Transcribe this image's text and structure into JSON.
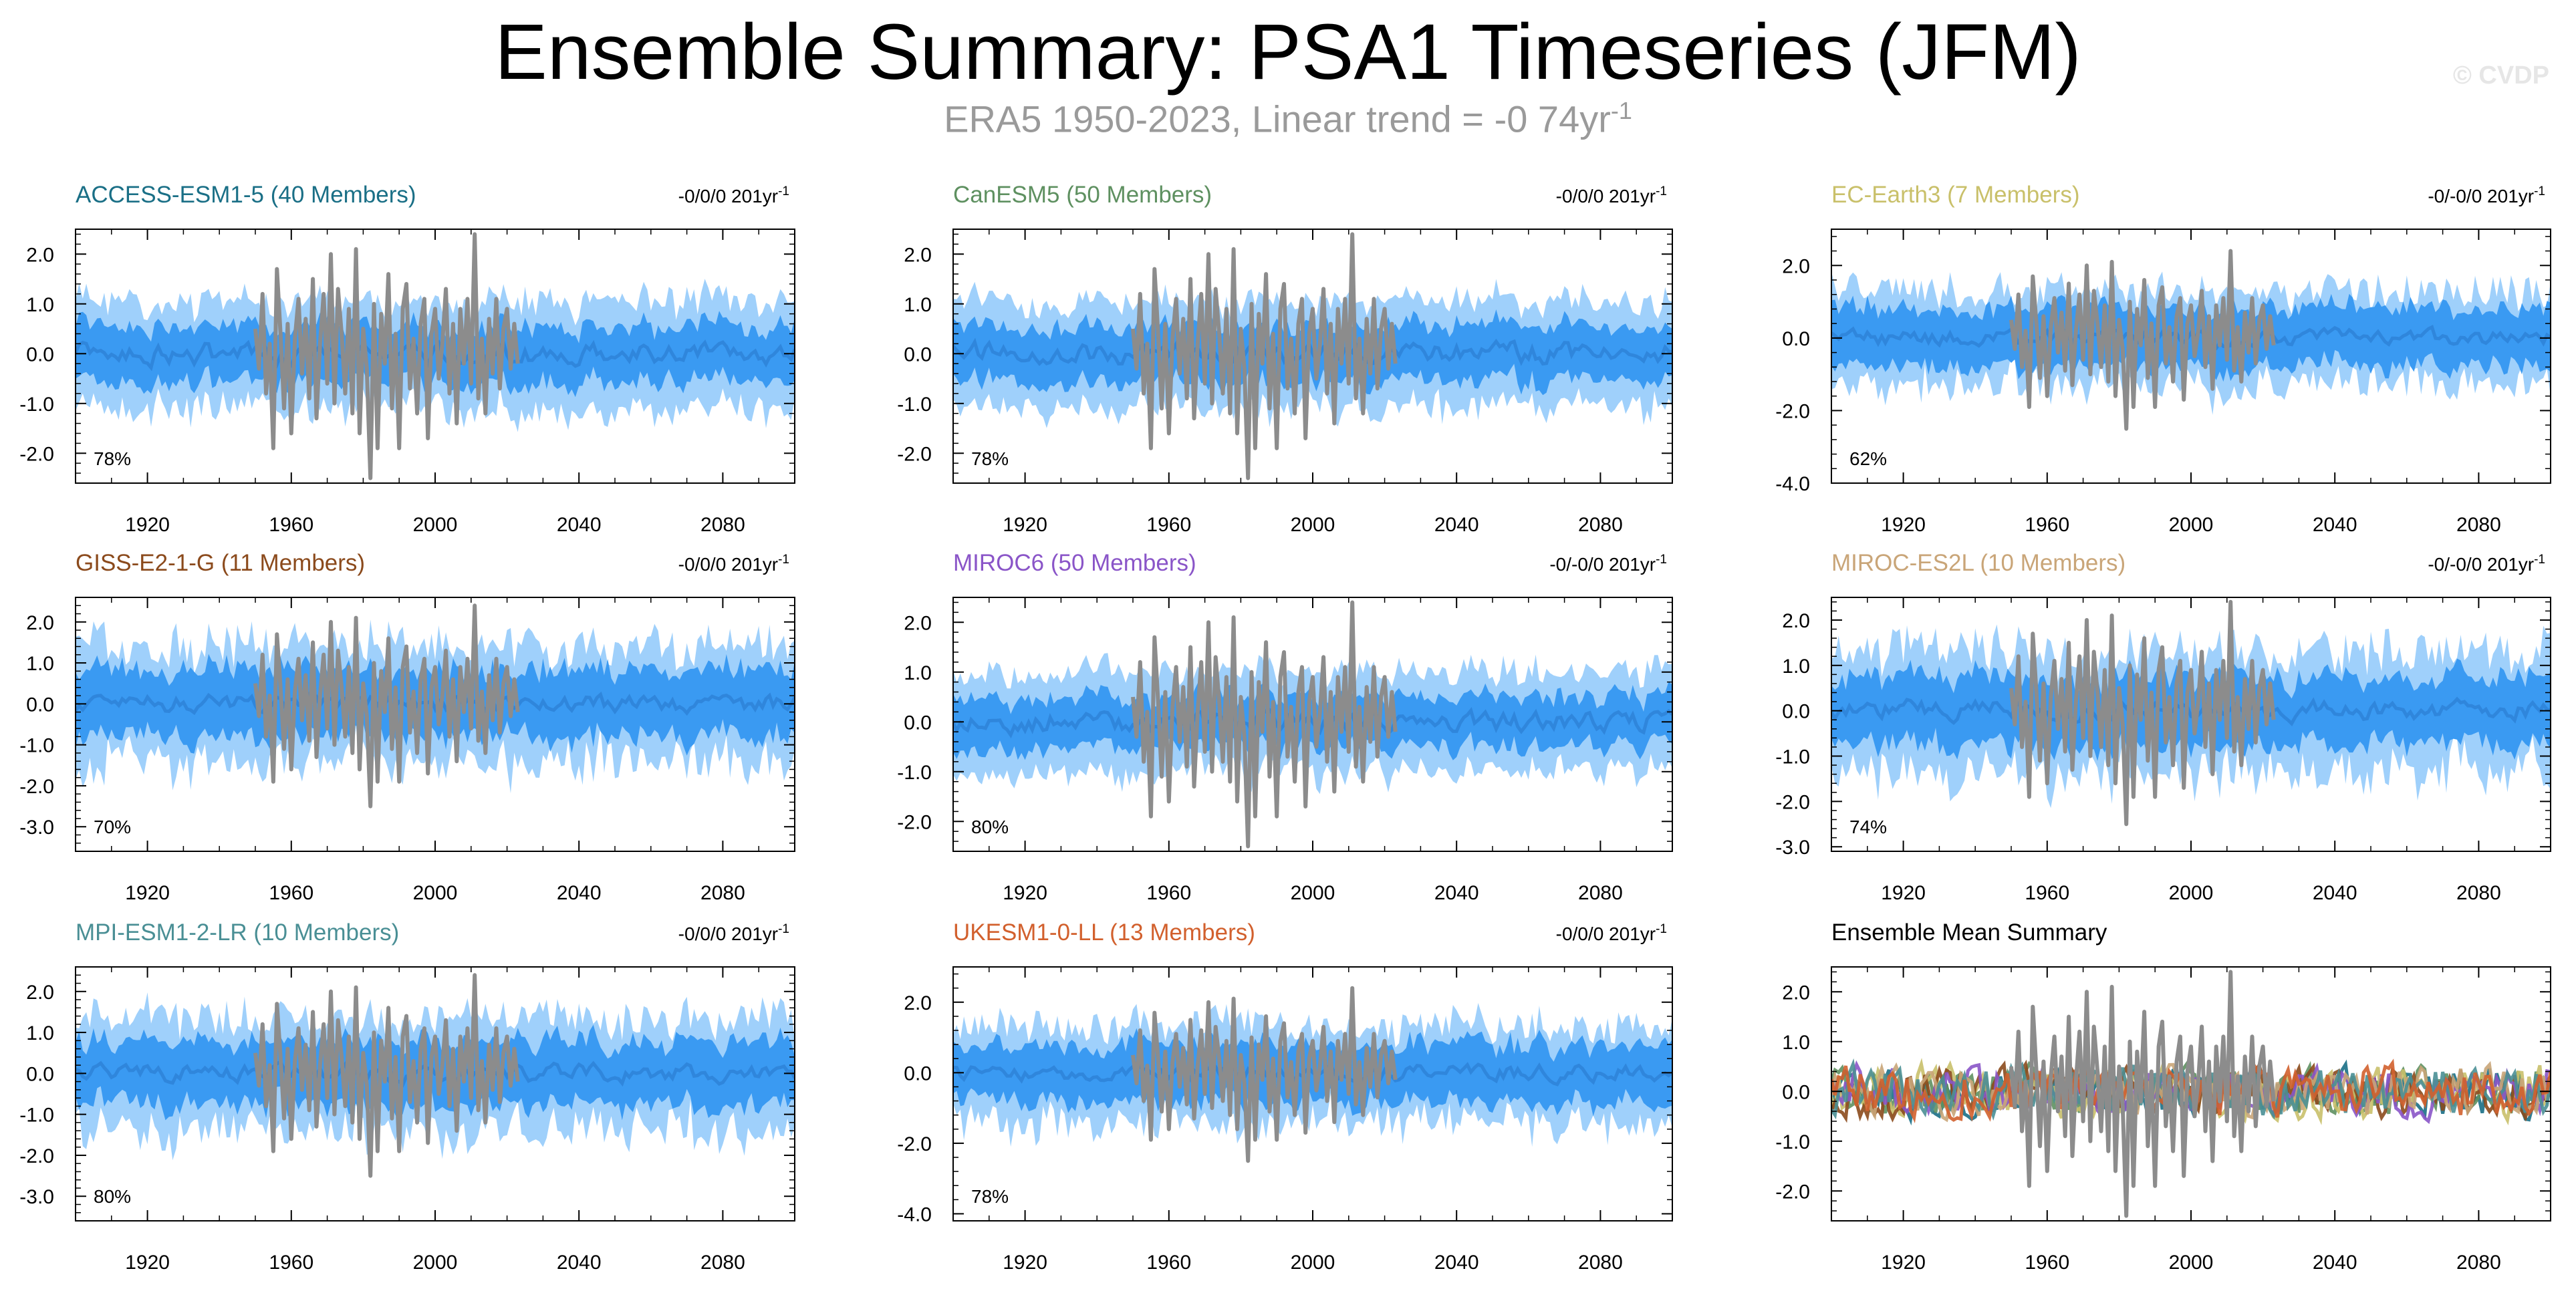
{
  "title": "Ensemble Summary: PSA1 Timeseries (JFM)",
  "subtitle": {
    "text": "ERA5 1950-2023, Linear trend = -0 74yr",
    "superscript": "-1"
  },
  "watermark": "© CVDP",
  "colors": {
    "outer_band": "#9fd0fb",
    "inner_band": "#3a9af2",
    "ensemble_mean": "#2f86dc",
    "observations": "#8c8c8c"
  },
  "chart_data": [
    {
      "type": "area",
      "title": "ACCESS-ESM1-5 (40 Members)",
      "title_color": "#1a6f86",
      "trend": "-0/0/0 201yr",
      "trend_unit_sup": "-1",
      "percent": "78%",
      "xlim": [
        1900,
        2100
      ],
      "xticks": [
        1920,
        1960,
        2000,
        2040,
        2080
      ],
      "ylim": [
        -2.6,
        2.5
      ],
      "yticks": [
        2.0,
        1.0,
        0.0,
        -1.0,
        -2.0
      ],
      "yticklabels": [
        "2.0",
        "1.0",
        "0.0",
        "-1.0",
        "-2.0"
      ],
      "band_outer": 1.05,
      "band_inner": 0.55,
      "band_var": 0.25,
      "seed": 11
    },
    {
      "type": "area",
      "title": "CanESM5 (50 Members)",
      "title_color": "#5e9060",
      "trend": "-0/0/0 201yr",
      "trend_unit_sup": "-1",
      "percent": "78%",
      "xlim": [
        1900,
        2100
      ],
      "xticks": [
        1920,
        1960,
        2000,
        2040,
        2080
      ],
      "ylim": [
        -2.6,
        2.5
      ],
      "yticks": [
        2.0,
        1.0,
        0.0,
        -1.0,
        -2.0
      ],
      "yticklabels": [
        "2.0",
        "1.0",
        "0.0",
        "-1.0",
        "-2.0"
      ],
      "band_outer": 1.05,
      "band_inner": 0.55,
      "band_var": 0.22,
      "seed": 23
    },
    {
      "type": "area",
      "title": "EC-Earth3 (7 Members)",
      "title_color": "#c9c06a",
      "trend": "-0/-0/0 201yr",
      "trend_unit_sup": "-1",
      "percent": "62%",
      "xlim": [
        1900,
        2100
      ],
      "xticks": [
        1920,
        1960,
        2000,
        2040,
        2080
      ],
      "ylim": [
        -4.0,
        3.0
      ],
      "yticks": [
        2.0,
        0.0,
        -2.0,
        -4.0
      ],
      "yticklabels": [
        "2.0",
        "0.0",
        "-2.0",
        "-4.0"
      ],
      "band_outer": 1.25,
      "band_inner": 0.8,
      "band_var": 0.45,
      "seed": 37
    },
    {
      "type": "area",
      "title": "GISS-E2-1-G (11 Members)",
      "title_color": "#8b4a1c",
      "trend": "-0/0/0 201yr",
      "trend_unit_sup": "-1",
      "percent": "70%",
      "xlim": [
        1900,
        2100
      ],
      "xticks": [
        1920,
        1960,
        2000,
        2040,
        2080
      ],
      "ylim": [
        -3.6,
        2.6
      ],
      "yticks": [
        2.0,
        1.0,
        0.0,
        -1.0,
        -2.0,
        -3.0
      ],
      "yticklabels": [
        "2.0",
        "1.0",
        "0.0",
        "-1.0",
        "-2.0",
        "-3.0"
      ],
      "band_outer": 1.4,
      "band_inner": 0.8,
      "band_var": 0.5,
      "seed": 41
    },
    {
      "type": "area",
      "title": "MIROC6 (50 Members)",
      "title_color": "#8a55c8",
      "trend": "-0/-0/0 201yr",
      "trend_unit_sup": "-1",
      "percent": "80%",
      "xlim": [
        1900,
        2100
      ],
      "xticks": [
        1920,
        1960,
        2000,
        2040,
        2080
      ],
      "ylim": [
        -2.6,
        2.5
      ],
      "yticks": [
        2.0,
        1.0,
        0.0,
        -1.0,
        -2.0
      ],
      "yticklabels": [
        "2.0",
        "1.0",
        "0.0",
        "-1.0",
        "-2.0"
      ],
      "band_outer": 1.0,
      "band_inner": 0.5,
      "band_var": 0.2,
      "seed": 53
    },
    {
      "type": "area",
      "title": "MIROC-ES2L (10 Members)",
      "title_color": "#c9a578",
      "trend": "-0/-0/0 201yr",
      "trend_unit_sup": "-1",
      "percent": "74%",
      "xlim": [
        1900,
        2100
      ],
      "xticks": [
        1920,
        1960,
        2000,
        2040,
        2080
      ],
      "ylim": [
        -3.1,
        2.5
      ],
      "yticks": [
        2.0,
        1.0,
        0.0,
        -1.0,
        -2.0,
        -3.0
      ],
      "yticklabels": [
        "2.0",
        "1.0",
        "0.0",
        "-1.0",
        "-2.0",
        "-3.0"
      ],
      "band_outer": 1.3,
      "band_inner": 0.75,
      "band_var": 0.45,
      "seed": 67
    },
    {
      "type": "area",
      "title": "MPI-ESM1-2-LR (10 Members)",
      "title_color": "#4a8f95",
      "trend": "-0/0/0 201yr",
      "trend_unit_sup": "-1",
      "percent": "80%",
      "xlim": [
        1900,
        2100
      ],
      "xticks": [
        1920,
        1960,
        2000,
        2040,
        2080
      ],
      "ylim": [
        -3.6,
        2.6
      ],
      "yticks": [
        2.0,
        1.0,
        0.0,
        -1.0,
        -2.0,
        -3.0
      ],
      "yticklabels": [
        "2.0",
        "1.0",
        "0.0",
        "-1.0",
        "-2.0",
        "-3.0"
      ],
      "band_outer": 1.35,
      "band_inner": 0.75,
      "band_var": 0.45,
      "seed": 79
    },
    {
      "type": "area",
      "title": "UKESM1-0-LL (13 Members)",
      "title_color": "#d2602d",
      "trend": "-0/0/0 201yr",
      "trend_unit_sup": "-1",
      "percent": "78%",
      "xlim": [
        1900,
        2100
      ],
      "xticks": [
        1920,
        1960,
        2000,
        2040,
        2080
      ],
      "ylim": [
        -4.2,
        3.0
      ],
      "yticks": [
        2.0,
        0.0,
        -2.0,
        -4.0
      ],
      "yticklabels": [
        "2.0",
        "0.0",
        "-2.0",
        "-4.0"
      ],
      "band_outer": 1.35,
      "band_inner": 0.8,
      "band_var": 0.45,
      "seed": 83
    },
    {
      "type": "line",
      "title": "Ensemble Mean Summary",
      "title_color": "#000000",
      "xlim": [
        1900,
        2100
      ],
      "xticks": [
        1920,
        1960,
        2000,
        2040,
        2080
      ],
      "ylim": [
        -2.6,
        2.5
      ],
      "yticks": [
        2.0,
        1.0,
        0.0,
        -1.0,
        -2.0
      ],
      "yticklabels": [
        "2.0",
        "1.0",
        "0.0",
        "-1.0",
        "-2.0"
      ],
      "series_colors": [
        "#1a6f86",
        "#5e9060",
        "#c9c06a",
        "#8b4a1c",
        "#8a55c8",
        "#c9a578",
        "#4a8f95",
        "#d2602d"
      ]
    }
  ],
  "observations": {
    "x": [
      1950,
      1951,
      1952,
      1953,
      1954,
      1955,
      1956,
      1957,
      1958,
      1959,
      1960,
      1961,
      1962,
      1963,
      1964,
      1965,
      1966,
      1967,
      1968,
      1969,
      1970,
      1971,
      1972,
      1973,
      1974,
      1975,
      1976,
      1977,
      1978,
      1979,
      1980,
      1981,
      1982,
      1983,
      1984,
      1985,
      1986,
      1987,
      1988,
      1989,
      1990,
      1991,
      1992,
      1993,
      1994,
      1995,
      1996,
      1997,
      1998,
      1999,
      2000,
      2001,
      2002,
      2003,
      2004,
      2005,
      2006,
      2007,
      2008,
      2009,
      2010,
      2011,
      2012,
      2013,
      2014,
      2015,
      2016,
      2017,
      2018,
      2019,
      2020,
      2021,
      2022,
      2023
    ],
    "y": [
      0.5,
      -0.3,
      1.2,
      -0.8,
      0.2,
      -1.9,
      1.7,
      0.4,
      -1.1,
      0.6,
      -1.6,
      0.3,
      1.1,
      -0.4,
      0.7,
      -0.9,
      1.5,
      -1.3,
      0.2,
      1.2,
      -0.6,
      2.0,
      -1.0,
      1.3,
      0.4,
      -0.8,
      0.9,
      -1.2,
      2.1,
      -1.6,
      0.5,
      -0.3,
      -2.5,
      1.0,
      -1.9,
      0.8,
      -0.2,
      1.6,
      -1.1,
      0.4,
      -1.9,
      0.9,
      1.4,
      -0.7,
      0.3,
      -1.2,
      0.6,
      1.1,
      -1.7,
      0.4,
      0.9,
      -0.5,
      0.2,
      1.3,
      -0.8,
      0.6,
      -1.4,
      0.9,
      -0.2,
      1.1,
      -0.6,
      2.4,
      -0.9,
      0.3,
      -1.2,
      0.7,
      -0.4,
      1.1,
      -0.7,
      0.5,
      0.9,
      -0.3,
      0.6,
      -0.2
    ]
  }
}
